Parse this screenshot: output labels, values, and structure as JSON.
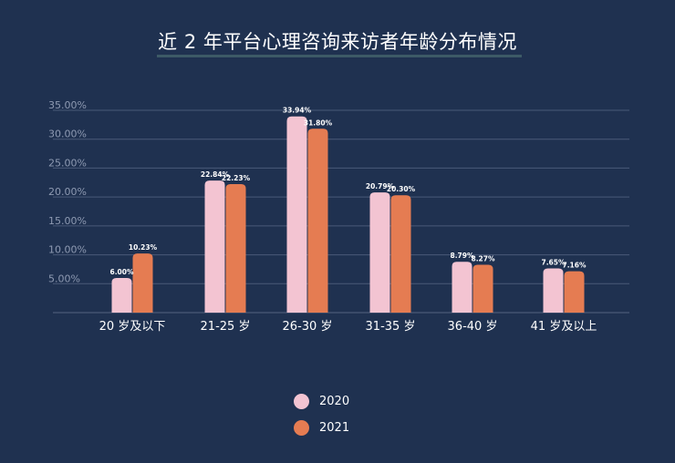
{
  "chart_data": {
    "type": "bar",
    "title": "近 2 年平台心理咨询来访者年龄分布情况",
    "categories": [
      "20 岁及以下",
      "21-25 岁",
      "26-30 岁",
      "31-35 岁",
      "36-40 岁",
      "41 岁及以上"
    ],
    "series": [
      {
        "name": "2020",
        "color": "#f3c4d2",
        "values": [
          6.0,
          22.84,
          33.94,
          20.79,
          8.79,
          7.65
        ],
        "labels": [
          "6.00%",
          "22.84%",
          "33.94%",
          "20.79%",
          "8.79%",
          "7.65%"
        ]
      },
      {
        "name": "2021",
        "color": "#e57c52",
        "values": [
          10.23,
          22.23,
          31.8,
          20.3,
          8.27,
          7.16
        ],
        "labels": [
          "10.23%",
          "22.23%",
          "31.80%",
          "20.30%",
          "8.27%",
          "7.16%"
        ]
      }
    ],
    "y_ticks": [
      5,
      10,
      15,
      20,
      25,
      30,
      35
    ],
    "y_tick_labels": [
      "5.00%",
      "10.00%",
      "15.00%",
      "20.00%",
      "25.00%",
      "30.00%",
      "35.00%"
    ],
    "ylim": [
      0,
      35
    ],
    "grid": true,
    "legend_position": "bottom-center"
  }
}
